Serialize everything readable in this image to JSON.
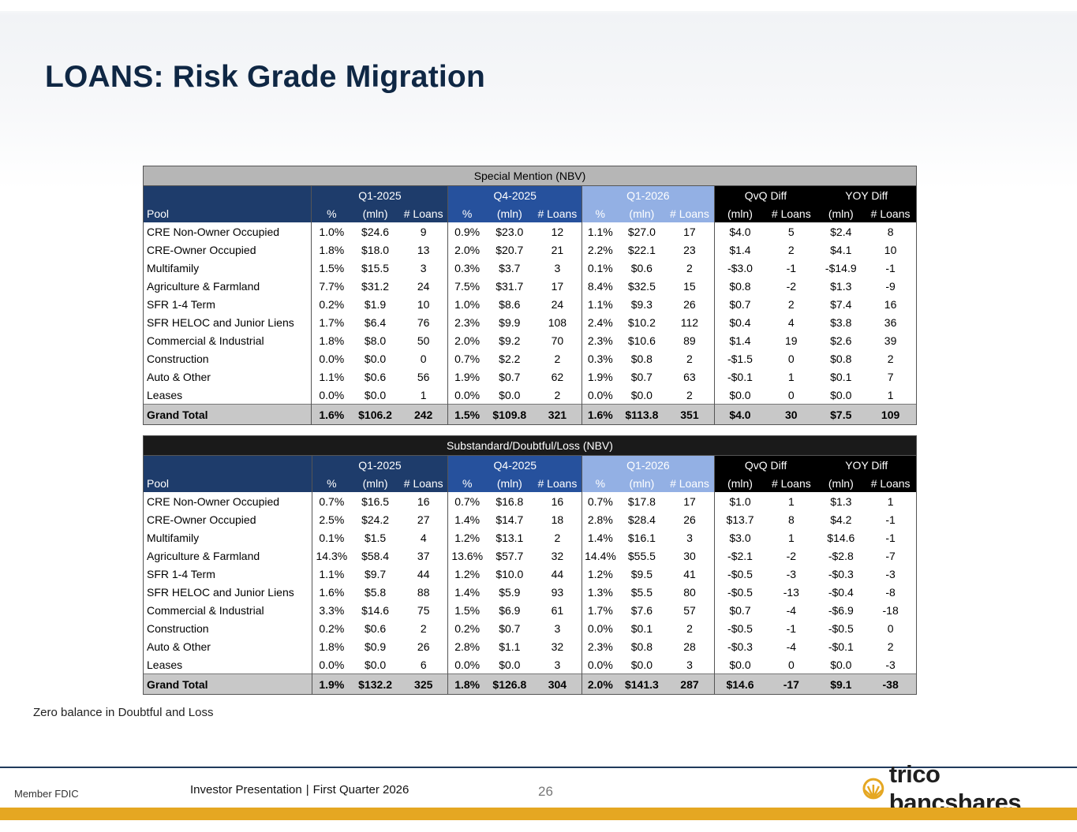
{
  "slide": {
    "title": "LOANS: Risk Grade Migration",
    "note": "Zero balance in Doubtful and Loss",
    "footer": {
      "member": "Member FDIC",
      "presentation": "Investor Presentation",
      "separator": "|",
      "period": "First Quarter 2026",
      "page_number": "26",
      "logo_text": "trico bancshares"
    }
  },
  "columns": {
    "groups": [
      "Q1-2025",
      "Q4-2025",
      "Q1-2026",
      "QvQ Diff",
      "YOY Diff"
    ],
    "pool": "Pool",
    "pct": "%",
    "mln": "(mln)",
    "loans": "# Loans"
  },
  "tables": [
    {
      "title": "Special Mention (NBV)",
      "rows": [
        {
          "pool": "CRE Non-Owner Occupied",
          "q1_2025": [
            "1.0%",
            "$24.6",
            "9"
          ],
          "q4_2025": [
            "0.9%",
            "$23.0",
            "12"
          ],
          "q1_2026": [
            "1.1%",
            "$27.0",
            "17"
          ],
          "qvq": [
            "$4.0",
            "5"
          ],
          "yoy": [
            "$2.4",
            "8"
          ]
        },
        {
          "pool": "CRE-Owner Occupied",
          "q1_2025": [
            "1.8%",
            "$18.0",
            "13"
          ],
          "q4_2025": [
            "2.0%",
            "$20.7",
            "21"
          ],
          "q1_2026": [
            "2.2%",
            "$22.1",
            "23"
          ],
          "qvq": [
            "$1.4",
            "2"
          ],
          "yoy": [
            "$4.1",
            "10"
          ]
        },
        {
          "pool": "Multifamily",
          "q1_2025": [
            "1.5%",
            "$15.5",
            "3"
          ],
          "q4_2025": [
            "0.3%",
            "$3.7",
            "3"
          ],
          "q1_2026": [
            "0.1%",
            "$0.6",
            "2"
          ],
          "qvq": [
            "-$3.0",
            "-1"
          ],
          "yoy": [
            "-$14.9",
            "-1"
          ]
        },
        {
          "pool": "Agriculture & Farmland",
          "q1_2025": [
            "7.7%",
            "$31.2",
            "24"
          ],
          "q4_2025": [
            "7.5%",
            "$31.7",
            "17"
          ],
          "q1_2026": [
            "8.4%",
            "$32.5",
            "15"
          ],
          "qvq": [
            "$0.8",
            "-2"
          ],
          "yoy": [
            "$1.3",
            "-9"
          ]
        },
        {
          "pool": "SFR 1-4 Term",
          "q1_2025": [
            "0.2%",
            "$1.9",
            "10"
          ],
          "q4_2025": [
            "1.0%",
            "$8.6",
            "24"
          ],
          "q1_2026": [
            "1.1%",
            "$9.3",
            "26"
          ],
          "qvq": [
            "$0.7",
            "2"
          ],
          "yoy": [
            "$7.4",
            "16"
          ]
        },
        {
          "pool": "SFR HELOC and Junior Liens",
          "q1_2025": [
            "1.7%",
            "$6.4",
            "76"
          ],
          "q4_2025": [
            "2.3%",
            "$9.9",
            "108"
          ],
          "q1_2026": [
            "2.4%",
            "$10.2",
            "112"
          ],
          "qvq": [
            "$0.4",
            "4"
          ],
          "yoy": [
            "$3.8",
            "36"
          ]
        },
        {
          "pool": "Commercial & Industrial",
          "q1_2025": [
            "1.8%",
            "$8.0",
            "50"
          ],
          "q4_2025": [
            "2.0%",
            "$9.2",
            "70"
          ],
          "q1_2026": [
            "2.3%",
            "$10.6",
            "89"
          ],
          "qvq": [
            "$1.4",
            "19"
          ],
          "yoy": [
            "$2.6",
            "39"
          ]
        },
        {
          "pool": "Construction",
          "q1_2025": [
            "0.0%",
            "$0.0",
            "0"
          ],
          "q4_2025": [
            "0.7%",
            "$2.2",
            "2"
          ],
          "q1_2026": [
            "0.3%",
            "$0.8",
            "2"
          ],
          "qvq": [
            "-$1.5",
            "0"
          ],
          "yoy": [
            "$0.8",
            "2"
          ]
        },
        {
          "pool": "Auto & Other",
          "q1_2025": [
            "1.1%",
            "$0.6",
            "56"
          ],
          "q4_2025": [
            "1.9%",
            "$0.7",
            "62"
          ],
          "q1_2026": [
            "1.9%",
            "$0.7",
            "63"
          ],
          "qvq": [
            "-$0.1",
            "1"
          ],
          "yoy": [
            "$0.1",
            "7"
          ]
        },
        {
          "pool": "Leases",
          "q1_2025": [
            "0.0%",
            "$0.0",
            "1"
          ],
          "q4_2025": [
            "0.0%",
            "$0.0",
            "2"
          ],
          "q1_2026": [
            "0.0%",
            "$0.0",
            "2"
          ],
          "qvq": [
            "$0.0",
            "0"
          ],
          "yoy": [
            "$0.0",
            "1"
          ]
        }
      ],
      "total": {
        "pool": "Grand Total",
        "q1_2025": [
          "1.6%",
          "$106.2",
          "242"
        ],
        "q4_2025": [
          "1.5%",
          "$109.8",
          "321"
        ],
        "q1_2026": [
          "1.6%",
          "$113.8",
          "351"
        ],
        "qvq": [
          "$4.0",
          "30"
        ],
        "yoy": [
          "$7.5",
          "109"
        ]
      }
    },
    {
      "title": "Substandard/Doubtful/Loss (NBV)",
      "rows": [
        {
          "pool": "CRE Non-Owner Occupied",
          "q1_2025": [
            "0.7%",
            "$16.5",
            "16"
          ],
          "q4_2025": [
            "0.7%",
            "$16.8",
            "16"
          ],
          "q1_2026": [
            "0.7%",
            "$17.8",
            "17"
          ],
          "qvq": [
            "$1.0",
            "1"
          ],
          "yoy": [
            "$1.3",
            "1"
          ]
        },
        {
          "pool": "CRE-Owner Occupied",
          "q1_2025": [
            "2.5%",
            "$24.2",
            "27"
          ],
          "q4_2025": [
            "1.4%",
            "$14.7",
            "18"
          ],
          "q1_2026": [
            "2.8%",
            "$28.4",
            "26"
          ],
          "qvq": [
            "$13.7",
            "8"
          ],
          "yoy": [
            "$4.2",
            "-1"
          ]
        },
        {
          "pool": "Multifamily",
          "q1_2025": [
            "0.1%",
            "$1.5",
            "4"
          ],
          "q4_2025": [
            "1.2%",
            "$13.1",
            "2"
          ],
          "q1_2026": [
            "1.4%",
            "$16.1",
            "3"
          ],
          "qvq": [
            "$3.0",
            "1"
          ],
          "yoy": [
            "$14.6",
            "-1"
          ]
        },
        {
          "pool": "Agriculture & Farmland",
          "q1_2025": [
            "14.3%",
            "$58.4",
            "37"
          ],
          "q4_2025": [
            "13.6%",
            "$57.7",
            "32"
          ],
          "q1_2026": [
            "14.4%",
            "$55.5",
            "30"
          ],
          "qvq": [
            "-$2.1",
            "-2"
          ],
          "yoy": [
            "-$2.8",
            "-7"
          ]
        },
        {
          "pool": "SFR 1-4 Term",
          "q1_2025": [
            "1.1%",
            "$9.7",
            "44"
          ],
          "q4_2025": [
            "1.2%",
            "$10.0",
            "44"
          ],
          "q1_2026": [
            "1.2%",
            "$9.5",
            "41"
          ],
          "qvq": [
            "-$0.5",
            "-3"
          ],
          "yoy": [
            "-$0.3",
            "-3"
          ]
        },
        {
          "pool": "SFR HELOC and Junior Liens",
          "q1_2025": [
            "1.6%",
            "$5.8",
            "88"
          ],
          "q4_2025": [
            "1.4%",
            "$5.9",
            "93"
          ],
          "q1_2026": [
            "1.3%",
            "$5.5",
            "80"
          ],
          "qvq": [
            "-$0.5",
            "-13"
          ],
          "yoy": [
            "-$0.4",
            "-8"
          ]
        },
        {
          "pool": "Commercial & Industrial",
          "q1_2025": [
            "3.3%",
            "$14.6",
            "75"
          ],
          "q4_2025": [
            "1.5%",
            "$6.9",
            "61"
          ],
          "q1_2026": [
            "1.7%",
            "$7.6",
            "57"
          ],
          "qvq": [
            "$0.7",
            "-4"
          ],
          "yoy": [
            "-$6.9",
            "-18"
          ]
        },
        {
          "pool": "Construction",
          "q1_2025": [
            "0.2%",
            "$0.6",
            "2"
          ],
          "q4_2025": [
            "0.2%",
            "$0.7",
            "3"
          ],
          "q1_2026": [
            "0.0%",
            "$0.1",
            "2"
          ],
          "qvq": [
            "-$0.5",
            "-1"
          ],
          "yoy": [
            "-$0.5",
            "0"
          ]
        },
        {
          "pool": "Auto & Other",
          "q1_2025": [
            "1.8%",
            "$0.9",
            "26"
          ],
          "q4_2025": [
            "2.8%",
            "$1.1",
            "32"
          ],
          "q1_2026": [
            "2.3%",
            "$0.8",
            "28"
          ],
          "qvq": [
            "-$0.3",
            "-4"
          ],
          "yoy": [
            "-$0.1",
            "2"
          ]
        },
        {
          "pool": "Leases",
          "q1_2025": [
            "0.0%",
            "$0.0",
            "6"
          ],
          "q4_2025": [
            "0.0%",
            "$0.0",
            "3"
          ],
          "q1_2026": [
            "0.0%",
            "$0.0",
            "3"
          ],
          "qvq": [
            "$0.0",
            "0"
          ],
          "yoy": [
            "$0.0",
            "-3"
          ]
        }
      ],
      "total": {
        "pool": "Grand Total",
        "q1_2025": [
          "1.9%",
          "$132.2",
          "325"
        ],
        "q4_2025": [
          "1.8%",
          "$126.8",
          "304"
        ],
        "q1_2026": [
          "2.0%",
          "$141.3",
          "287"
        ],
        "qvq": [
          "$14.6",
          "-17"
        ],
        "yoy": [
          "$9.1",
          "-38"
        ]
      }
    }
  ],
  "colors": {
    "title": "#0f2744",
    "q1_2025_header": "#1e3c6b",
    "q4_2025_header": "#26519d",
    "q1_2026_header": "#93b0e4",
    "diff_header": "#000000",
    "accent_bar": "#e5a722",
    "logo_icon": "#e5a722"
  },
  "icons": {
    "logo": "trico-shell-icon"
  }
}
